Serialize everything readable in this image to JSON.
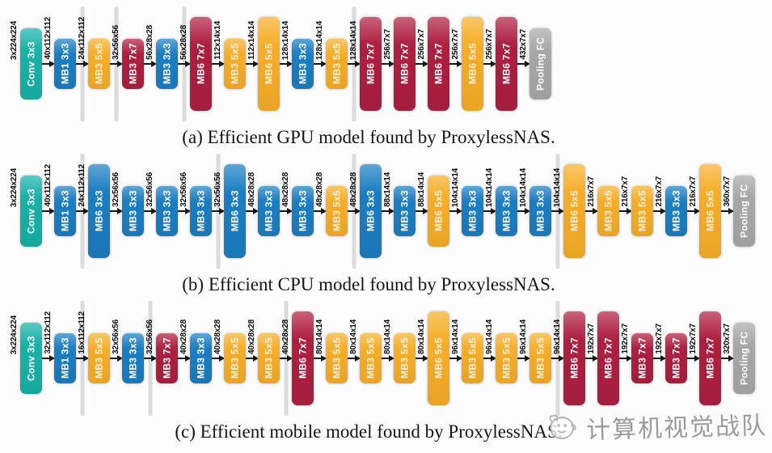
{
  "figure": {
    "legend_colors": {
      "conv": "#18b2a8",
      "mb_3x3": "#1b7ec2",
      "mb_5x5": "#f6ae28",
      "mb_7x7": "#ae1f40",
      "pooling": "#a8a8a8"
    },
    "watermark": {
      "text": "计算机视觉战队",
      "icon": "cartoon-bird-logo"
    },
    "models": [
      {
        "id": "a",
        "caption": "(a) Efficient GPU model found by ProxylessNAS.",
        "blocks": [
          {
            "label": "Conv 3x3",
            "dim": "3x224x224",
            "color_key": "conv",
            "size": "md",
            "divider": false
          },
          {
            "label": "MB1 3x3",
            "dim": "40x112x112",
            "color_key": "mb_3x3",
            "size": "sm",
            "divider": false
          },
          {
            "label": "MB3 5x5",
            "dim": "24x112x112",
            "color_key": "mb_5x5",
            "size": "sm",
            "divider": true
          },
          {
            "label": "MB3 7x7",
            "dim": "32x56x56",
            "color_key": "mb_7x7",
            "size": "sm",
            "divider": true
          },
          {
            "label": "MB3 3x3",
            "dim": "56x28x28",
            "color_key": "mb_3x3",
            "size": "sm",
            "divider": false
          },
          {
            "label": "MB6 7x7",
            "dim": "56x28x28",
            "color_key": "mb_7x7",
            "size": "lg",
            "divider": true
          },
          {
            "label": "MB3 5x5",
            "dim": "112x14x14",
            "color_key": "mb_5x5",
            "size": "sm",
            "divider": false
          },
          {
            "label": "MB6 5x5",
            "dim": "112x14x14",
            "color_key": "mb_5x5",
            "size": "lg",
            "divider": false
          },
          {
            "label": "MB3 3x3",
            "dim": "128x14x14",
            "color_key": "mb_3x3",
            "size": "sm",
            "divider": false
          },
          {
            "label": "MB3 5x5",
            "dim": "128x14x14",
            "color_key": "mb_5x5",
            "size": "sm",
            "divider": false
          },
          {
            "label": "MB6 7x7",
            "dim": "128x14x14",
            "color_key": "mb_7x7",
            "size": "lg",
            "divider": true
          },
          {
            "label": "MB6 7x7",
            "dim": "256x7x7",
            "color_key": "mb_7x7",
            "size": "lg",
            "divider": false
          },
          {
            "label": "MB6 7x7",
            "dim": "256x7x7",
            "color_key": "mb_7x7",
            "size": "lg",
            "divider": false
          },
          {
            "label": "MB6 5x5",
            "dim": "256x7x7",
            "color_key": "mb_5x5",
            "size": "lg",
            "divider": false
          },
          {
            "label": "MB6 7x7",
            "dim": "256x7x7",
            "color_key": "mb_7x7",
            "size": "lg",
            "divider": false
          },
          {
            "label": "Pooling FC",
            "dim": "432x7x7",
            "color_key": "pooling",
            "size": "md",
            "divider": false
          }
        ]
      },
      {
        "id": "b",
        "caption": "(b) Efficient CPU model found by ProxylessNAS.",
        "blocks": [
          {
            "label": "Conv 3x3",
            "dim": "3x224x224",
            "color_key": "conv",
            "size": "md",
            "divider": false
          },
          {
            "label": "MB1 3x3",
            "dim": "40x112x112",
            "color_key": "mb_3x3",
            "size": "sm",
            "divider": false
          },
          {
            "label": "MB6 3x3",
            "dim": "24x112x112",
            "color_key": "mb_3x3",
            "size": "lg",
            "divider": true
          },
          {
            "label": "MB3 3x3",
            "dim": "32x56x56",
            "color_key": "mb_3x3",
            "size": "sm",
            "divider": false
          },
          {
            "label": "MB3 3x3",
            "dim": "32x56x56",
            "color_key": "mb_3x3",
            "size": "sm",
            "divider": false
          },
          {
            "label": "MB3 3x3",
            "dim": "32x56x56",
            "color_key": "mb_3x3",
            "size": "sm",
            "divider": false
          },
          {
            "label": "MB6 3x3",
            "dim": "32x56x56",
            "color_key": "mb_3x3",
            "size": "lg",
            "divider": true
          },
          {
            "label": "MB3 3x3",
            "dim": "48x28x28",
            "color_key": "mb_3x3",
            "size": "sm",
            "divider": false
          },
          {
            "label": "MB3 3x3",
            "dim": "48x28x28",
            "color_key": "mb_3x3",
            "size": "sm",
            "divider": false
          },
          {
            "label": "MB3 5x5",
            "dim": "48x28x28",
            "color_key": "mb_5x5",
            "size": "sm",
            "divider": false
          },
          {
            "label": "MB6 3x3",
            "dim": "48x28x28",
            "color_key": "mb_3x3",
            "size": "lg",
            "divider": true
          },
          {
            "label": "MB3 3x3",
            "dim": "88x14x14",
            "color_key": "mb_3x3",
            "size": "sm",
            "divider": false
          },
          {
            "label": "MB6 5x5",
            "dim": "88x14x14",
            "color_key": "mb_5x5",
            "size": "md",
            "divider": false
          },
          {
            "label": "MB3 3x3",
            "dim": "104x14x14",
            "color_key": "mb_3x3",
            "size": "sm",
            "divider": false
          },
          {
            "label": "MB3 3x3",
            "dim": "104x14x14",
            "color_key": "mb_3x3",
            "size": "sm",
            "divider": false
          },
          {
            "label": "MB3 3x3",
            "dim": "104x14x14",
            "color_key": "mb_3x3",
            "size": "sm",
            "divider": false
          },
          {
            "label": "MB6 5x5",
            "dim": "104x14x14",
            "color_key": "mb_5x5",
            "size": "lg",
            "divider": true
          },
          {
            "label": "MB3 5x5",
            "dim": "216x7x7",
            "color_key": "mb_5x5",
            "size": "sm",
            "divider": false
          },
          {
            "label": "MB3 5x5",
            "dim": "216x7x7",
            "color_key": "mb_5x5",
            "size": "sm",
            "divider": false
          },
          {
            "label": "MB3 3x3",
            "dim": "216x7x7",
            "color_key": "mb_3x3",
            "size": "sm",
            "divider": false
          },
          {
            "label": "MB6 5x5",
            "dim": "216x7x7",
            "color_key": "mb_5x5",
            "size": "lg",
            "divider": false
          },
          {
            "label": "Pooling FC",
            "dim": "360x7x7",
            "color_key": "pooling",
            "size": "md",
            "divider": false
          }
        ]
      },
      {
        "id": "c",
        "caption": "(c) Efficient mobile model found by ProxylessNAS.",
        "blocks": [
          {
            "label": "Conv 3x3",
            "dim": "3x224x224",
            "color_key": "conv",
            "size": "md",
            "divider": false
          },
          {
            "label": "MB1 3x3",
            "dim": "32x112x112",
            "color_key": "mb_3x3",
            "size": "sm",
            "divider": false
          },
          {
            "label": "MB3 5x5",
            "dim": "16x112x112",
            "color_key": "mb_5x5",
            "size": "sm",
            "divider": true
          },
          {
            "label": "MB3 3x3",
            "dim": "32x56x56",
            "color_key": "mb_3x3",
            "size": "sm",
            "divider": false
          },
          {
            "label": "MB3 7x7",
            "dim": "32x56x56",
            "color_key": "mb_7x7",
            "size": "sm",
            "divider": true
          },
          {
            "label": "MB3 3x3",
            "dim": "40x28x28",
            "color_key": "mb_3x3",
            "size": "sm",
            "divider": false
          },
          {
            "label": "MB3 5x5",
            "dim": "40x28x28",
            "color_key": "mb_5x5",
            "size": "sm",
            "divider": false
          },
          {
            "label": "MB3 5x5",
            "dim": "40x28x28",
            "color_key": "mb_5x5",
            "size": "sm",
            "divider": false
          },
          {
            "label": "MB6 7x7",
            "dim": "40x28x28",
            "color_key": "mb_7x7",
            "size": "lg",
            "divider": true
          },
          {
            "label": "MB3 5x5",
            "dim": "80x14x14",
            "color_key": "mb_5x5",
            "size": "sm",
            "divider": false
          },
          {
            "label": "MB3 5x5",
            "dim": "80x14x14",
            "color_key": "mb_5x5",
            "size": "sm",
            "divider": false
          },
          {
            "label": "MB3 5x5",
            "dim": "80x14x14",
            "color_key": "mb_5x5",
            "size": "sm",
            "divider": false
          },
          {
            "label": "MB6 5x5",
            "dim": "80x14x14",
            "color_key": "mb_5x5",
            "size": "lg",
            "divider": false
          },
          {
            "label": "MB3 5x5",
            "dim": "96x14x14",
            "color_key": "mb_5x5",
            "size": "sm",
            "divider": false
          },
          {
            "label": "MB3 5x5",
            "dim": "96x14x14",
            "color_key": "mb_5x5",
            "size": "sm",
            "divider": false
          },
          {
            "label": "MB3 5x5",
            "dim": "96x14x14",
            "color_key": "mb_5x5",
            "size": "sm",
            "divider": false
          },
          {
            "label": "MB6 7x7",
            "dim": "96x14x14",
            "color_key": "mb_7x7",
            "size": "lg",
            "divider": true
          },
          {
            "label": "MB6 7x7",
            "dim": "192x7x7",
            "color_key": "mb_7x7",
            "size": "lg",
            "divider": false
          },
          {
            "label": "MB3 7x7",
            "dim": "192x7x7",
            "color_key": "mb_7x7",
            "size": "sm",
            "divider": false
          },
          {
            "label": "MB3 7x7",
            "dim": "192x7x7",
            "color_key": "mb_7x7",
            "size": "sm",
            "divider": false
          },
          {
            "label": "MB6 7x7",
            "dim": "192x7x7",
            "color_key": "mb_7x7",
            "size": "lg",
            "divider": false
          },
          {
            "label": "Pooling FC",
            "dim": "320x7x7",
            "color_key": "pooling",
            "size": "md",
            "divider": false
          }
        ]
      }
    ]
  }
}
